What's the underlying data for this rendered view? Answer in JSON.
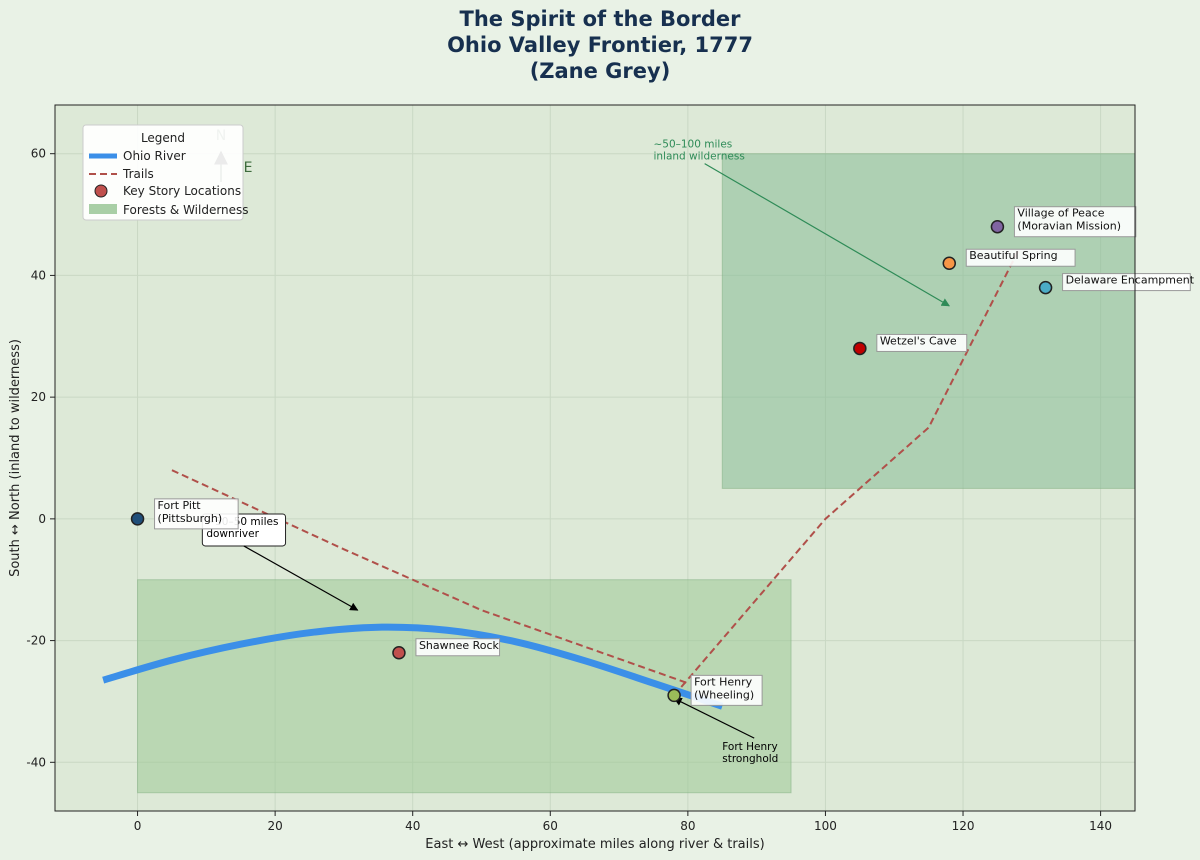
{
  "title_lines": [
    "The Spirit of the Border",
    "Ohio Valley Frontier, 1777",
    "(Zane Grey)"
  ],
  "chart_data": {
    "type": "scatter",
    "xlabel": "East ↔ West  (approximate miles along river & trails)",
    "ylabel": "South ↔ North  (inland to wilderness)",
    "xlim": [
      -12,
      145
    ],
    "ylim": [
      -48,
      68
    ],
    "xticks": [
      0,
      20,
      40,
      60,
      80,
      100,
      120,
      140
    ],
    "yticks": [
      -40,
      -20,
      0,
      20,
      40,
      60
    ],
    "grid": true,
    "legend": {
      "title": "Legend",
      "placement": "top-left",
      "items": [
        {
          "label": "Ohio River",
          "kind": "line",
          "color": "#3b8fe8"
        },
        {
          "label": "Trails",
          "kind": "dashed",
          "color": "#b0504a"
        },
        {
          "label": "Key Story Locations",
          "kind": "marker",
          "color": "#c0504d"
        },
        {
          "label": "Forests & Wilderness",
          "kind": "patch",
          "color": "#a9cfa6"
        }
      ]
    },
    "compass": {
      "north": "N",
      "east": "E"
    },
    "forests": [
      {
        "x0": 0,
        "x1": 95,
        "y0": -45,
        "y1": -10,
        "color": "#9dc895"
      },
      {
        "x0": 85,
        "x1": 145,
        "y0": 5,
        "y1": 60,
        "color": "#86bb95"
      }
    ],
    "river": {
      "name": "Ohio River",
      "color": "#3b8fe8",
      "x": [
        -5,
        5,
        15,
        25,
        35,
        45,
        55,
        65,
        75,
        85
      ],
      "y": [
        -26.5,
        -23.2,
        -20.6,
        -18.7,
        -17.8,
        -18.3,
        -20.2,
        -23.3,
        -27,
        -30.8
      ]
    },
    "trails": [
      {
        "x": [
          5,
          30,
          50,
          80
        ],
        "y": [
          8,
          -5,
          -15,
          -27
        ],
        "color": "#b0504a"
      },
      {
        "x": [
          78,
          100,
          115,
          128
        ],
        "y": [
          -29,
          0,
          15,
          44
        ],
        "color": "#b0504a"
      }
    ],
    "locations": [
      {
        "name": "Fort Pitt (Pittsburgh)",
        "lines": [
          "Fort Pitt",
          "(Pittsburgh)"
        ],
        "x": 0,
        "y": 0,
        "color": "#1f4e79"
      },
      {
        "name": "Shawnee Rock",
        "lines": [
          "Shawnee Rock"
        ],
        "x": 38,
        "y": -22,
        "color": "#c0504d"
      },
      {
        "name": "Fort Henry (Wheeling)",
        "lines": [
          "Fort Henry",
          "(Wheeling)"
        ],
        "x": 78,
        "y": -29,
        "color": "#9bbb59"
      },
      {
        "name": "Wetzel's Cave",
        "lines": [
          "Wetzel's Cave"
        ],
        "x": 105,
        "y": 28,
        "color": "#c00000"
      },
      {
        "name": "Beautiful Spring",
        "lines": [
          "Beautiful Spring"
        ],
        "x": 118,
        "y": 42,
        "color": "#f79646"
      },
      {
        "name": "Village of Peace (Moravian Mission)",
        "lines": [
          "Village of Peace",
          "(Moravian Mission)"
        ],
        "x": 125,
        "y": 48,
        "color": "#8064a2"
      },
      {
        "name": "Delaware Encampment",
        "lines": [
          "Delaware Encampment"
        ],
        "x": 132,
        "y": 38,
        "color": "#4bacc6"
      }
    ],
    "annotations": [
      {
        "lines": [
          "~30–50 miles",
          "downriver"
        ],
        "text_x": 10,
        "text_y": -1,
        "arrow_to": [
          32,
          -15
        ],
        "color": "#000000",
        "boxed": true
      },
      {
        "lines": [
          "~50–100 miles",
          "inland wilderness"
        ],
        "text_x": 75,
        "text_y": 61,
        "arrow_to": [
          118,
          35
        ],
        "color": "#2e8b57",
        "boxed": false
      },
      {
        "lines": [
          "Fort Henry",
          "stronghold"
        ],
        "text_x": 85,
        "text_y": -38,
        "arrow_to": [
          78,
          -29.5
        ],
        "color": "#000000",
        "boxed": false
      }
    ]
  }
}
